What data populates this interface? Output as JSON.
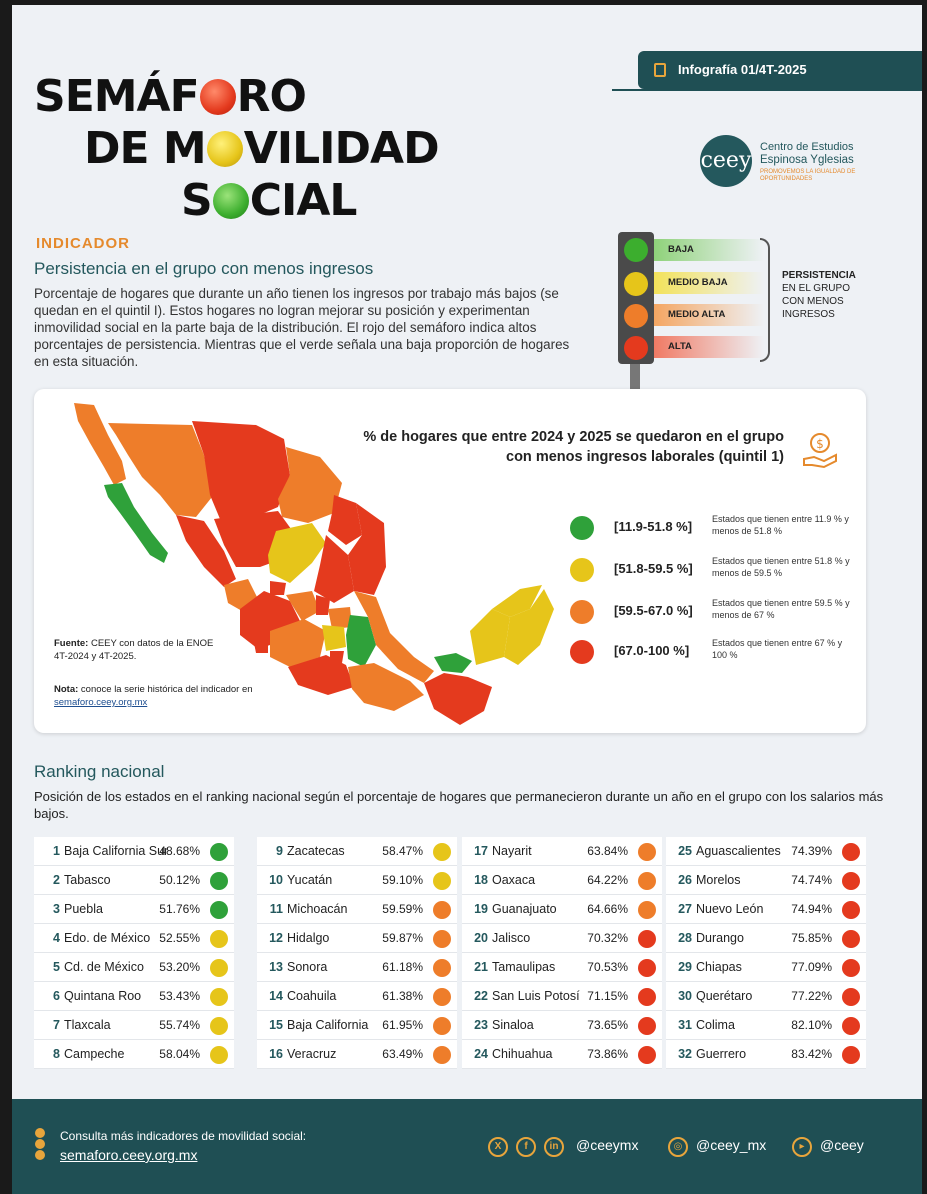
{
  "header": {
    "logo_word1_a": "SEMÁF",
    "logo_word1_b": "RO",
    "logo_word2_a": "DE M",
    "logo_word2_b": "VILIDAD",
    "logo_word3_a": "S",
    "logo_word3_b": "CIAL",
    "infografia": "Infografía 01/4T-2025",
    "org_name_line1": "Centro de Estudios",
    "org_name_line2": "Espinosa Yglesias",
    "org_mark": "ceey",
    "org_tagline": "PROMOVEMOS LA IGUALDAD DE OPORTUNIDADES"
  },
  "indicator": {
    "label": "INDICADOR",
    "title": "Persistencia en el grupo con menos ingresos",
    "description": "Porcentaje de hogares que durante un año tienen los ingresos por trabajo más bajos (se quedan en el quintil I). Estos hogares no logran mejorar su posición y experimentan inmovilidad social en la parte baja de la distribución. El rojo del semáforo indica altos porcentajes de persistencia. Mientras que el verde señala una baja proporción de hogares en esta situación."
  },
  "semaforo": {
    "levels": [
      {
        "label": "BAJA",
        "color": "#3cae2e"
      },
      {
        "label": "MEDIO BAJA",
        "color": "#e6c51a"
      },
      {
        "label": "MEDIO ALTA",
        "color": "#ee7d2a"
      },
      {
        "label": "ALTA",
        "color": "#e43a1e"
      }
    ],
    "side_label_bold": "PERSISTENCIA",
    "side_label_rest": "EN EL GRUPO CON MENOS INGRESOS"
  },
  "map": {
    "title": "% de hogares que entre 2024 y 2025 se quedaron en el grupo con menos ingresos laborales (quintil 1)",
    "legend": [
      {
        "range": "[11.9-51.8 %]",
        "desc": "Estados que tienen entre 11.9 % y menos de 51.8 %",
        "color": "#2fa13a"
      },
      {
        "range": "[51.8-59.5 %]",
        "desc": "Estados que tienen entre 51.8 % y menos de 59.5 %",
        "color": "#e6c51a"
      },
      {
        "range": "[59.5-67.0 %]",
        "desc": "Estados que tienen entre 59.5 % y menos de 67 %",
        "color": "#ee7d2a"
      },
      {
        "range": "[67.0-100 %]",
        "desc": "Estados que tienen entre 67 % y 100 %",
        "color": "#e43a1e"
      }
    ],
    "source_label": "Fuente:",
    "source_text": "CEEY con datos de la ENOE 4T-2024 y 4T-2025.",
    "note_label": "Nota:",
    "note_text": "conoce la serie histórica del indicador en",
    "note_link": "semaforo.ceey.org.mx"
  },
  "ranking": {
    "title": "Ranking nacional",
    "description": "Posición de los estados en el ranking nacional según el porcentaje de hogares que permanecieron durante un año en el grupo con los salarios más bajos.",
    "rows": [
      {
        "rank": "1",
        "state": "Baja California Sur",
        "value": "48.68%",
        "color": "#2fa13a"
      },
      {
        "rank": "2",
        "state": "Tabasco",
        "value": "50.12%",
        "color": "#2fa13a"
      },
      {
        "rank": "3",
        "state": "Puebla",
        "value": "51.76%",
        "color": "#2fa13a"
      },
      {
        "rank": "4",
        "state": "Edo. de México",
        "value": "52.55%",
        "color": "#e6c51a"
      },
      {
        "rank": "5",
        "state": "Cd. de México",
        "value": "53.20%",
        "color": "#e6c51a"
      },
      {
        "rank": "6",
        "state": "Quintana Roo",
        "value": "53.43%",
        "color": "#e6c51a"
      },
      {
        "rank": "7",
        "state": "Tlaxcala",
        "value": "55.74%",
        "color": "#e6c51a"
      },
      {
        "rank": "8",
        "state": "Campeche",
        "value": "58.04%",
        "color": "#e6c51a"
      },
      {
        "rank": "9",
        "state": "Zacatecas",
        "value": "58.47%",
        "color": "#e6c51a"
      },
      {
        "rank": "10",
        "state": "Yucatán",
        "value": "59.10%",
        "color": "#e6c51a"
      },
      {
        "rank": "11",
        "state": "Michoacán",
        "value": "59.59%",
        "color": "#ee7d2a"
      },
      {
        "rank": "12",
        "state": "Hidalgo",
        "value": "59.87%",
        "color": "#ee7d2a"
      },
      {
        "rank": "13",
        "state": "Sonora",
        "value": "61.18%",
        "color": "#ee7d2a"
      },
      {
        "rank": "14",
        "state": "Coahuila",
        "value": "61.38%",
        "color": "#ee7d2a"
      },
      {
        "rank": "15",
        "state": "Baja California",
        "value": "61.95%",
        "color": "#ee7d2a"
      },
      {
        "rank": "16",
        "state": "Veracruz",
        "value": "63.49%",
        "color": "#ee7d2a"
      },
      {
        "rank": "17",
        "state": "Nayarit",
        "value": "63.84%",
        "color": "#ee7d2a"
      },
      {
        "rank": "18",
        "state": "Oaxaca",
        "value": "64.22%",
        "color": "#ee7d2a"
      },
      {
        "rank": "19",
        "state": "Guanajuato",
        "value": "64.66%",
        "color": "#ee7d2a"
      },
      {
        "rank": "20",
        "state": "Jalisco",
        "value": "70.32%",
        "color": "#e43a1e"
      },
      {
        "rank": "21",
        "state": "Tamaulipas",
        "value": "70.53%",
        "color": "#e43a1e"
      },
      {
        "rank": "22",
        "state": "San Luis Potosí",
        "value": "71.15%",
        "color": "#e43a1e"
      },
      {
        "rank": "23",
        "state": "Sinaloa",
        "value": "73.65%",
        "color": "#e43a1e"
      },
      {
        "rank": "24",
        "state": "Chihuahua",
        "value": "73.86%",
        "color": "#e43a1e"
      },
      {
        "rank": "25",
        "state": "Aguascalientes",
        "value": "74.39%",
        "color": "#e43a1e"
      },
      {
        "rank": "26",
        "state": "Morelos",
        "value": "74.74%",
        "color": "#e43a1e"
      },
      {
        "rank": "27",
        "state": "Nuevo León",
        "value": "74.94%",
        "color": "#e43a1e"
      },
      {
        "rank": "28",
        "state": "Durango",
        "value": "75.85%",
        "color": "#e43a1e"
      },
      {
        "rank": "29",
        "state": "Chiapas",
        "value": "77.09%",
        "color": "#e43a1e"
      },
      {
        "rank": "30",
        "state": "Querétaro",
        "value": "77.22%",
        "color": "#e43a1e"
      },
      {
        "rank": "31",
        "state": "Colima",
        "value": "82.10%",
        "color": "#e43a1e"
      },
      {
        "rank": "32",
        "state": "Guerrero",
        "value": "83.42%",
        "color": "#e43a1e"
      }
    ]
  },
  "footer": {
    "text": "Consulta más indicadores de movilidad social:",
    "link": "semaforo.ceey.org.mx",
    "socials": [
      {
        "icon": "x-icon",
        "glyph": "X"
      },
      {
        "icon": "facebook-icon",
        "glyph": "f"
      },
      {
        "icon": "linkedin-icon",
        "glyph": "in"
      }
    ],
    "handle_main": "@ceeymx",
    "instagram_handle": "@ceey_mx",
    "youtube_handle": "@ceey"
  }
}
